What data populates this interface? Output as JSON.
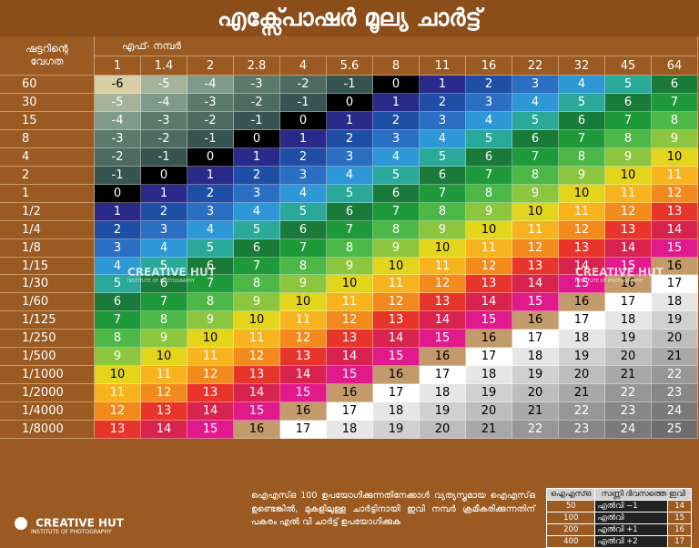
{
  "title": "എക്സ്പോഷർ മൂല്യ ചാർട്ട്",
  "corner": {
    "line1": "ഷട്ടറിന്റെ",
    "line2": "വേഗത"
  },
  "f_header": "എഫ്- നമ്പർ",
  "chart_data": {
    "type": "table",
    "f_numbers": [
      "1",
      "1.4",
      "2",
      "2.8",
      "4",
      "5.6",
      "8",
      "11",
      "16",
      "22",
      "32",
      "45",
      "64"
    ],
    "shutter_speeds": [
      "60",
      "30",
      "15",
      "8",
      "4",
      "2",
      "1",
      "1/2",
      "1/4",
      "1/8",
      "1/15",
      "1/30",
      "1/60",
      "1/125",
      "1/250",
      "1/500",
      "1/1000",
      "1/2000",
      "1/4000",
      "1/8000"
    ],
    "values": [
      [
        -6,
        -5,
        -4,
        -3,
        -2,
        -1,
        0,
        1,
        2,
        3,
        4,
        5,
        6
      ],
      [
        -5,
        -4,
        -3,
        -2,
        -1,
        0,
        1,
        2,
        3,
        4,
        5,
        6,
        7
      ],
      [
        -4,
        -3,
        -2,
        -1,
        0,
        1,
        2,
        3,
        4,
        5,
        6,
        7,
        8
      ],
      [
        -3,
        -2,
        -1,
        0,
        1,
        2,
        3,
        4,
        5,
        6,
        7,
        8,
        9
      ],
      [
        -2,
        -1,
        0,
        1,
        2,
        3,
        4,
        5,
        6,
        7,
        8,
        9,
        10
      ],
      [
        -1,
        0,
        1,
        2,
        3,
        4,
        5,
        6,
        7,
        8,
        9,
        10,
        11
      ],
      [
        0,
        1,
        2,
        3,
        4,
        5,
        6,
        7,
        8,
        9,
        10,
        11,
        12
      ],
      [
        1,
        2,
        3,
        4,
        5,
        6,
        7,
        8,
        9,
        10,
        11,
        12,
        13
      ],
      [
        2,
        3,
        4,
        5,
        6,
        7,
        8,
        9,
        10,
        11,
        12,
        13,
        14
      ],
      [
        3,
        4,
        5,
        6,
        7,
        8,
        9,
        10,
        11,
        12,
        13,
        14,
        15
      ],
      [
        4,
        5,
        6,
        7,
        8,
        9,
        10,
        11,
        12,
        13,
        14,
        15,
        16
      ],
      [
        5,
        6,
        7,
        8,
        9,
        10,
        11,
        12,
        13,
        14,
        15,
        16,
        17
      ],
      [
        6,
        7,
        8,
        9,
        10,
        11,
        12,
        13,
        14,
        15,
        16,
        17,
        18
      ],
      [
        7,
        8,
        9,
        10,
        11,
        12,
        13,
        14,
        15,
        16,
        17,
        18,
        19
      ],
      [
        8,
        9,
        10,
        11,
        12,
        13,
        14,
        15,
        16,
        17,
        18,
        19,
        20
      ],
      [
        9,
        10,
        11,
        12,
        13,
        14,
        15,
        16,
        17,
        18,
        19,
        20,
        21
      ],
      [
        10,
        11,
        12,
        13,
        14,
        15,
        16,
        17,
        18,
        19,
        20,
        21,
        22
      ],
      [
        11,
        12,
        13,
        14,
        15,
        16,
        17,
        18,
        19,
        20,
        21,
        22,
        23
      ],
      [
        12,
        13,
        14,
        15,
        16,
        17,
        18,
        19,
        20,
        21,
        22,
        23,
        24
      ],
      [
        13,
        14,
        15,
        16,
        17,
        18,
        19,
        20,
        21,
        22,
        23,
        24,
        25
      ]
    ],
    "colors": {
      "-6": "#d8cfa6",
      "-5": "#a4b39a",
      "-4": "#7f9a8a",
      "-3": "#5c7a6c",
      "-2": "#4e6b62",
      "-1": "#385450",
      "0": "#000000",
      "1": "#2a2a8a",
      "2": "#1f4fa5",
      "3": "#2a6fc2",
      "4": "#2e97d6",
      "5": "#2aa99b",
      "6": "#1a7a3a",
      "7": "#1f9a3a",
      "8": "#4db848",
      "9": "#8cc63e",
      "10": "#e2d51c",
      "11": "#f7b41e",
      "12": "#f28a1e",
      "13": "#e8352b",
      "14": "#d8234e",
      "15": "#e01a8a",
      "16": "#c39a6b",
      "17": "#ffffff",
      "18": "#e6e6e6",
      "19": "#d0d0d0",
      "20": "#bdbdbd",
      "21": "#a8a8a8",
      "22": "#969696",
      "23": "#878787",
      "24": "#7a7a7a",
      "25": "#6e6e6e"
    }
  },
  "watermark": {
    "name": "CREATIVE HUT",
    "sub": "INSTITUTE OF PHOTOGRAPHY"
  },
  "footer": {
    "note": "ഐഎസ്ഒ 100 ഉപയോഗിക്കുന്നതിനേക്കാൾ വ്യത്യസ്തമായ ഐഎസ്ഒ ഉണ്ടെങ്കിൽ, മുകളിലുള്ള ചാർട്ടിനായി ഇവി നമ്പർ ക്രമീകരിക്കുന്നതിന് പകരം എൽ വി ചാർട്ട് ഉപയോഗിക്കുക",
    "logo_name": "CREATIVE HUT",
    "logo_sub": "INSTITUTE OF PHOTOGRAPHY",
    "iso_table": {
      "headers": [
        "ഐഎസ്ഒ",
        "സണ്ണി ദിവസത്തെ ഇവി"
      ],
      "rows": [
        {
          "iso": "50",
          "lv": "എൽവി −1",
          "ev": "14"
        },
        {
          "iso": "100",
          "lv": "എൽവി",
          "ev": "15"
        },
        {
          "iso": "200",
          "lv": "എൽവി +1",
          "ev": "16"
        },
        {
          "iso": "400",
          "lv": "എൽവി +2",
          "ev": "17"
        }
      ]
    }
  }
}
